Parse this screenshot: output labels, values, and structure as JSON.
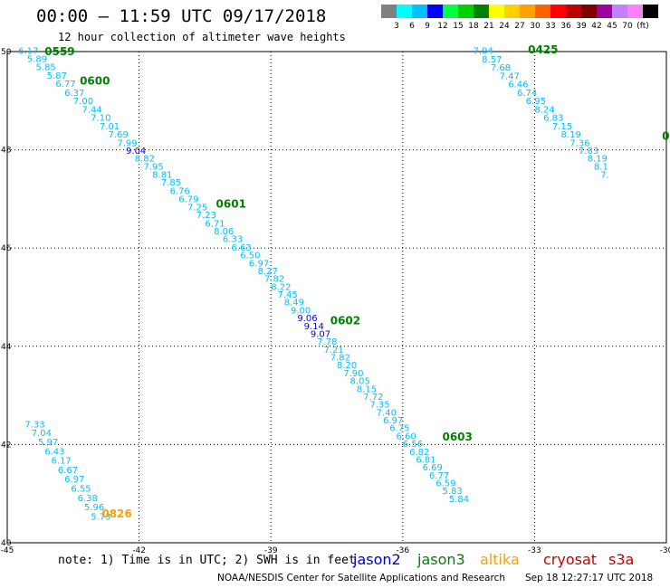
{
  "header": {
    "title": "00:00 – 11:59 UTC 09/17/2018",
    "subtitle": "12 hour collection of altimeter wave heights"
  },
  "colorbar": {
    "swatches": [
      "#808080",
      "#00ffff",
      "#00c0ff",
      "#0000ff",
      "#00ff40",
      "#00d000",
      "#008000",
      "#ffff00",
      "#ffd000",
      "#ffa000",
      "#ff6000",
      "#ff0000",
      "#c00000",
      "#800000",
      "#a000a0",
      "#c080ff",
      "#ff80ff",
      "#000000"
    ],
    "labels": [
      "3",
      "6",
      "9",
      "12",
      "15",
      "18",
      "21",
      "24",
      "27",
      "30",
      "33",
      "36",
      "39",
      "42",
      "45",
      "70",
      "(ft)"
    ]
  },
  "axes": {
    "x_ticks": [
      "-45",
      "-42",
      "-39",
      "-36",
      "-33",
      "-30"
    ],
    "y_ticks": [
      "50",
      "48",
      "46",
      "44",
      "42",
      "40"
    ]
  },
  "track_values": [
    {
      "t": "6.17",
      "c": "#00c0ff",
      "lon": -44.75,
      "lat": 49.95
    },
    {
      "t": "5.89",
      "c": "#00c0ff",
      "lon": -44.55,
      "lat": 49.79
    },
    {
      "t": "5.85",
      "c": "#00c0ff",
      "lon": -44.35,
      "lat": 49.62
    },
    {
      "t": "5.87",
      "c": "#00c0ff",
      "lon": -44.1,
      "lat": 49.45
    },
    {
      "t": "6.77",
      "c": "#00c0ff",
      "lon": -43.9,
      "lat": 49.28
    },
    {
      "t": "6.37",
      "c": "#00c0ff",
      "lon": -43.7,
      "lat": 49.1
    },
    {
      "t": "7.00",
      "c": "#00c0ff",
      "lon": -43.5,
      "lat": 48.93
    },
    {
      "t": "7.44",
      "c": "#00c0ff",
      "lon": -43.3,
      "lat": 48.76
    },
    {
      "t": "7.10",
      "c": "#00c0ff",
      "lon": -43.1,
      "lat": 48.59
    },
    {
      "t": "7.01",
      "c": "#00c0ff",
      "lon": -42.9,
      "lat": 48.42
    },
    {
      "t": "7.69",
      "c": "#00c0ff",
      "lon": -42.7,
      "lat": 48.25
    },
    {
      "t": "7.99",
      "c": "#00c0ff",
      "lon": -42.5,
      "lat": 48.08
    },
    {
      "t": "9.04",
      "c": "#0000ff",
      "lon": -42.3,
      "lat": 47.92
    },
    {
      "t": "8.82",
      "c": "#00c0ff",
      "lon": -42.1,
      "lat": 47.76
    },
    {
      "t": "7.95",
      "c": "#00c0ff",
      "lon": -41.9,
      "lat": 47.6
    },
    {
      "t": "8.81",
      "c": "#00c0ff",
      "lon": -41.7,
      "lat": 47.43
    },
    {
      "t": "7.85",
      "c": "#00c0ff",
      "lon": -41.5,
      "lat": 47.27
    },
    {
      "t": "6.76",
      "c": "#00c0ff",
      "lon": -41.3,
      "lat": 47.1
    },
    {
      "t": "6.79",
      "c": "#00c0ff",
      "lon": -41.1,
      "lat": 46.93
    },
    {
      "t": "7.25",
      "c": "#00c0ff",
      "lon": -40.9,
      "lat": 46.77
    },
    {
      "t": "7.23",
      "c": "#00c0ff",
      "lon": -40.7,
      "lat": 46.61
    },
    {
      "t": "6.71",
      "c": "#00c0ff",
      "lon": -40.5,
      "lat": 46.44
    },
    {
      "t": "8.06",
      "c": "#00c0ff",
      "lon": -40.3,
      "lat": 46.28
    },
    {
      "t": "6.33",
      "c": "#00c0ff",
      "lon": -40.1,
      "lat": 46.12
    },
    {
      "t": "6.63",
      "c": "#00c0ff",
      "lon": -39.9,
      "lat": 45.95
    },
    {
      "t": "6.50",
      "c": "#00c0ff",
      "lon": -39.7,
      "lat": 45.79
    },
    {
      "t": "6.97",
      "c": "#00c0ff",
      "lon": -39.5,
      "lat": 45.63
    },
    {
      "t": "8.27",
      "c": "#00c0ff",
      "lon": -39.3,
      "lat": 45.47
    },
    {
      "t": "7.82",
      "c": "#00c0ff",
      "lon": -39.15,
      "lat": 45.31
    },
    {
      "t": "8.22",
      "c": "#00c0ff",
      "lon": -39.0,
      "lat": 45.15
    },
    {
      "t": "7.45",
      "c": "#00c0ff",
      "lon": -38.85,
      "lat": 44.99
    },
    {
      "t": "8.49",
      "c": "#00c0ff",
      "lon": -38.7,
      "lat": 44.83
    },
    {
      "t": "9.00",
      "c": "#00c0ff",
      "lon": -38.55,
      "lat": 44.67
    },
    {
      "t": "9.06",
      "c": "#0000ff",
      "lon": -38.4,
      "lat": 44.51
    },
    {
      "t": "9.14",
      "c": "#0000ff",
      "lon": -38.25,
      "lat": 44.35
    },
    {
      "t": "9.07",
      "c": "#0000ff",
      "lon": -38.1,
      "lat": 44.19
    },
    {
      "t": "7.78",
      "c": "#00c0ff",
      "lon": -37.95,
      "lat": 44.03
    },
    {
      "t": "7.21",
      "c": "#00c0ff",
      "lon": -37.8,
      "lat": 43.87
    },
    {
      "t": "7.82",
      "c": "#00c0ff",
      "lon": -37.65,
      "lat": 43.71
    },
    {
      "t": "8.20",
      "c": "#00c0ff",
      "lon": -37.5,
      "lat": 43.55
    },
    {
      "t": "7.90",
      "c": "#00c0ff",
      "lon": -37.35,
      "lat": 43.39
    },
    {
      "t": "8.05",
      "c": "#00c0ff",
      "lon": -37.2,
      "lat": 43.23
    },
    {
      "t": "8.15",
      "c": "#00c0ff",
      "lon": -37.05,
      "lat": 43.07
    },
    {
      "t": "7.72",
      "c": "#00c0ff",
      "lon": -36.9,
      "lat": 42.91
    },
    {
      "t": "7.35",
      "c": "#00c0ff",
      "lon": -36.75,
      "lat": 42.75
    },
    {
      "t": "7.40",
      "c": "#00c0ff",
      "lon": -36.6,
      "lat": 42.59
    },
    {
      "t": "6.97",
      "c": "#00c0ff",
      "lon": -36.45,
      "lat": 42.43
    },
    {
      "t": "6.75",
      "c": "#00c0ff",
      "lon": -36.3,
      "lat": 42.27
    },
    {
      "t": "6.60",
      "c": "#00c0ff",
      "lon": -36.15,
      "lat": 42.11
    },
    {
      "t": "6.56",
      "c": "#00c0ff",
      "lon": -36.0,
      "lat": 41.95
    },
    {
      "t": "6.82",
      "c": "#00c0ff",
      "lon": -35.85,
      "lat": 41.79
    },
    {
      "t": "6.81",
      "c": "#00c0ff",
      "lon": -35.7,
      "lat": 41.63
    },
    {
      "t": "6.69",
      "c": "#00c0ff",
      "lon": -35.55,
      "lat": 41.47
    },
    {
      "t": "6.77",
      "c": "#00c0ff",
      "lon": -35.4,
      "lat": 41.31
    },
    {
      "t": "6.59",
      "c": "#00c0ff",
      "lon": -35.25,
      "lat": 41.15
    },
    {
      "t": "5.83",
      "c": "#00c0ff",
      "lon": -35.1,
      "lat": 40.99
    },
    {
      "t": "5.84",
      "c": "#00c0ff",
      "lon": -34.95,
      "lat": 40.83
    },
    {
      "t": "7.94",
      "c": "#00c0ff",
      "lon": -34.4,
      "lat": 49.95
    },
    {
      "t": "8.57",
      "c": "#00c0ff",
      "lon": -34.2,
      "lat": 49.78
    },
    {
      "t": "7.68",
      "c": "#00c0ff",
      "lon": -34.0,
      "lat": 49.61
    },
    {
      "t": "7.47",
      "c": "#00c0ff",
      "lon": -33.8,
      "lat": 49.44
    },
    {
      "t": "6.46",
      "c": "#00c0ff",
      "lon": -33.6,
      "lat": 49.27
    },
    {
      "t": "6.74",
      "c": "#00c0ff",
      "lon": -33.4,
      "lat": 49.1
    },
    {
      "t": "6.95",
      "c": "#00c0ff",
      "lon": -33.2,
      "lat": 48.93
    },
    {
      "t": "8.24",
      "c": "#00c0ff",
      "lon": -33.0,
      "lat": 48.76
    },
    {
      "t": "6.83",
      "c": "#00c0ff",
      "lon": -32.8,
      "lat": 48.59
    },
    {
      "t": "7.15",
      "c": "#00c0ff",
      "lon": -32.6,
      "lat": 48.42
    },
    {
      "t": "8.19",
      "c": "#00c0ff",
      "lon": -32.4,
      "lat": 48.25
    },
    {
      "t": "7.36",
      "c": "#00c0ff",
      "lon": -32.2,
      "lat": 48.08
    },
    {
      "t": "7.83",
      "c": "#00c0ff",
      "lon": -32.0,
      "lat": 47.92
    },
    {
      "t": "8.19",
      "c": "#00c0ff",
      "lon": -31.8,
      "lat": 47.76
    },
    {
      "t": "8.1",
      "c": "#00c0ff",
      "lon": -31.65,
      "lat": 47.6
    },
    {
      "t": "7.",
      "c": "#00c0ff",
      "lon": -31.5,
      "lat": 47.43
    },
    {
      "t": "7.33",
      "c": "#00c0ff",
      "lon": -44.6,
      "lat": 42.35
    },
    {
      "t": "7.04",
      "c": "#00c0ff",
      "lon": -44.45,
      "lat": 42.17
    },
    {
      "t": "5.97",
      "c": "#00c0ff",
      "lon": -44.3,
      "lat": 41.99
    },
    {
      "t": "6.43",
      "c": "#00c0ff",
      "lon": -44.15,
      "lat": 41.8
    },
    {
      "t": "6.17",
      "c": "#00c0ff",
      "lon": -44.0,
      "lat": 41.61
    },
    {
      "t": "6.67",
      "c": "#00c0ff",
      "lon": -43.85,
      "lat": 41.42
    },
    {
      "t": "6.97",
      "c": "#00c0ff",
      "lon": -43.7,
      "lat": 41.23
    },
    {
      "t": "6.55",
      "c": "#00c0ff",
      "lon": -43.55,
      "lat": 41.04
    },
    {
      "t": "6.38",
      "c": "#00c0ff",
      "lon": -43.4,
      "lat": 40.85
    },
    {
      "t": "5.96",
      "c": "#00c0ff",
      "lon": -43.25,
      "lat": 40.66
    },
    {
      "t": "5.73",
      "c": "#00c0ff",
      "lon": -43.1,
      "lat": 40.47
    }
  ],
  "time_labels": [
    {
      "t": "0559",
      "c": "#008000",
      "lon": -44.15,
      "lat": 49.93
    },
    {
      "t": "0600",
      "c": "#008000",
      "lon": -43.35,
      "lat": 49.33
    },
    {
      "t": "0601",
      "c": "#008000",
      "lon": -40.25,
      "lat": 46.82
    },
    {
      "t": "0602",
      "c": "#008000",
      "lon": -37.65,
      "lat": 44.45
    },
    {
      "t": "0603",
      "c": "#008000",
      "lon": -35.1,
      "lat": 42.08
    },
    {
      "t": "0425",
      "c": "#008000",
      "lon": -33.15,
      "lat": 49.96
    },
    {
      "t": "0",
      "c": "#008000",
      "lon": -30.1,
      "lat": 48.2
    },
    {
      "t": "0826",
      "c": "#ffa000",
      "lon": -42.85,
      "lat": 40.52
    }
  ],
  "footer": {
    "note": "note: 1) Time is in UTC; 2) SWH is in feet",
    "satellites": [
      {
        "name": "jason2",
        "color": "#0000c0"
      },
      {
        "name": "jason3",
        "color": "#008000"
      },
      {
        "name": "altika",
        "color": "#ffa000"
      },
      {
        "name": "cryosat",
        "color": "#c00000"
      },
      {
        "name": "s3a",
        "color": "#c00000"
      }
    ],
    "credit": "NOAA/NESDIS Center for Satellite Applications and Research",
    "timestamp": "Sep 18 12:27:17 UTC 2018"
  }
}
